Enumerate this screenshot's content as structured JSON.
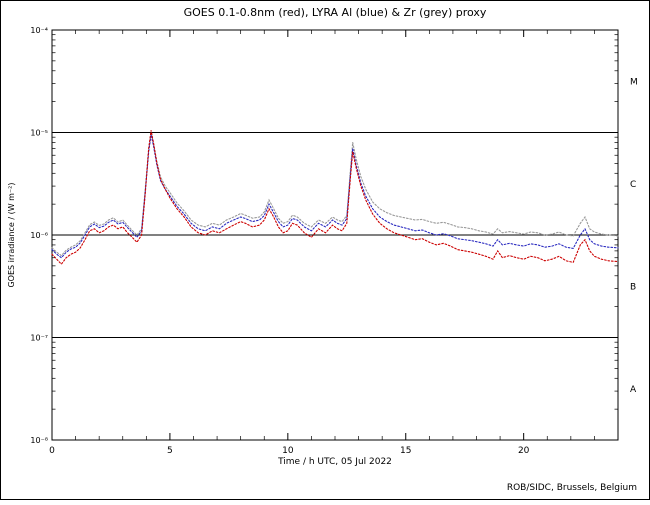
{
  "chart_data": {
    "type": "line",
    "title": "GOES 0.1-0.8nm (red), LYRA Al (blue) & Zr (grey) proxy",
    "xlabel": "Time / h UTC, 05 Jul 2022",
    "ylabel": "GOES irradiance / (W m⁻²)",
    "credit": "ROB/SIDC, Brussels, Belgium",
    "xlim": [
      0,
      24
    ],
    "ylim_exp": [
      -8,
      -4
    ],
    "grid": false,
    "legend_position": "in-title",
    "x_tick_labels": [
      {
        "value": 0,
        "label": "0"
      },
      {
        "value": 5,
        "label": "5"
      },
      {
        "value": 10,
        "label": "10"
      },
      {
        "value": 15,
        "label": "15"
      },
      {
        "value": 20,
        "label": "20"
      }
    ],
    "y_ticks": [
      {
        "exp": -4,
        "label": "10⁻⁴"
      },
      {
        "exp": -5,
        "label": "10⁻⁵"
      },
      {
        "exp": -6,
        "label": "10⁻⁶"
      },
      {
        "exp": -7,
        "label": "10⁻⁷"
      },
      {
        "exp": -8,
        "label": "10⁻⁸"
      }
    ],
    "threshold_exponents": [
      -5,
      -6,
      -7
    ],
    "flare_classes": [
      {
        "label": "M",
        "mid_exp": -4.5
      },
      {
        "label": "C",
        "mid_exp": -5.5
      },
      {
        "label": "B",
        "mid_exp": -6.5
      },
      {
        "label": "A",
        "mid_exp": -7.5
      }
    ],
    "x": [
      0,
      0.2,
      0.4,
      0.6,
      0.8,
      1.0,
      1.2,
      1.4,
      1.6,
      1.8,
      2.0,
      2.2,
      2.4,
      2.6,
      2.8,
      3.0,
      3.2,
      3.4,
      3.6,
      3.8,
      3.95,
      4.1,
      4.2,
      4.3,
      4.45,
      4.6,
      4.8,
      5.0,
      5.3,
      5.6,
      5.9,
      6.2,
      6.5,
      6.8,
      7.1,
      7.4,
      7.7,
      8.0,
      8.2,
      8.5,
      8.8,
      9.0,
      9.2,
      9.4,
      9.6,
      9.8,
      10.0,
      10.2,
      10.4,
      10.7,
      11.0,
      11.3,
      11.6,
      11.9,
      12.1,
      12.3,
      12.5,
      12.65,
      12.75,
      12.9,
      13.1,
      13.3,
      13.6,
      13.9,
      14.2,
      14.5,
      14.8,
      15.1,
      15.4,
      15.7,
      16.0,
      16.3,
      16.6,
      16.9,
      17.2,
      17.5,
      17.8,
      18.1,
      18.4,
      18.7,
      18.9,
      19.1,
      19.4,
      19.7,
      20.0,
      20.3,
      20.6,
      20.9,
      21.2,
      21.5,
      21.8,
      22.1,
      22.4,
      22.6,
      22.8,
      23.0,
      23.3,
      23.6,
      24.0
    ],
    "series": [
      {
        "key": "lyra-zr",
        "name": "LYRA Zr proxy",
        "color": "#999999",
        "values": [
          7.5e-07,
          6.8e-07,
          6.3e-07,
          7.1e-07,
          7.6e-07,
          8e-07,
          8.8e-07,
          1.05e-06,
          1.26e-06,
          1.34e-06,
          1.24e-06,
          1.28e-06,
          1.4e-06,
          1.47e-06,
          1.34e-06,
          1.4e-06,
          1.24e-06,
          1.11e-06,
          1e-06,
          1.15e-06,
          2.8e-06,
          7e-06,
          1e-05,
          8e-06,
          5.2e-06,
          3.7e-06,
          3e-06,
          2.6e-06,
          2.05e-06,
          1.72e-06,
          1.4e-06,
          1.25e-06,
          1.2e-06,
          1.3e-06,
          1.25e-06,
          1.4e-06,
          1.5e-06,
          1.62e-06,
          1.56e-06,
          1.46e-06,
          1.5e-06,
          1.68e-06,
          2.2e-06,
          1.8e-06,
          1.46e-06,
          1.3e-06,
          1.35e-06,
          1.56e-06,
          1.5e-06,
          1.3e-06,
          1.2e-06,
          1.4e-06,
          1.3e-06,
          1.5e-06,
          1.4e-06,
          1.35e-06,
          1.55e-06,
          4.2e-06,
          8e-06,
          5.5e-06,
          3.7e-06,
          2.8e-06,
          2.1e-06,
          1.8e-06,
          1.65e-06,
          1.55e-06,
          1.5e-06,
          1.45e-06,
          1.4e-06,
          1.42e-06,
          1.35e-06,
          1.3e-06,
          1.33e-06,
          1.27e-06,
          1.2e-06,
          1.18e-06,
          1.15e-06,
          1.1e-06,
          1.07e-06,
          1.02e-06,
          1.15e-06,
          1.05e-06,
          1.08e-06,
          1.05e-06,
          1.02e-06,
          1.07e-06,
          1.05e-06,
          1e-06,
          1.02e-06,
          1.07e-06,
          1e-06,
          9.8e-07,
          1.3e-06,
          1.5e-06,
          1.15e-06,
          1.07e-06,
          1.02e-06,
          1e-06,
          9.8e-07
        ]
      },
      {
        "key": "lyra-al",
        "name": "LYRA Al proxy",
        "color": "#2b2bc0",
        "values": [
          7.2e-07,
          6.5e-07,
          6e-07,
          6.8e-07,
          7.3e-07,
          7.6e-07,
          8.4e-07,
          1e-06,
          1.2e-06,
          1.28e-06,
          1.18e-06,
          1.22e-06,
          1.33e-06,
          1.4e-06,
          1.28e-06,
          1.33e-06,
          1.18e-06,
          1.06e-06,
          9.5e-07,
          1.1e-06,
          2.6e-06,
          6.5e-06,
          9.5e-06,
          7.5e-06,
          4.8e-06,
          3.4e-06,
          2.8e-06,
          2.4e-06,
          1.9e-06,
          1.6e-06,
          1.3e-06,
          1.15e-06,
          1.1e-06,
          1.2e-06,
          1.15e-06,
          1.3e-06,
          1.4e-06,
          1.5e-06,
          1.45e-06,
          1.35e-06,
          1.4e-06,
          1.55e-06,
          2e-06,
          1.65e-06,
          1.35e-06,
          1.2e-06,
          1.25e-06,
          1.45e-06,
          1.4e-06,
          1.2e-06,
          1.1e-06,
          1.3e-06,
          1.2e-06,
          1.4e-06,
          1.3e-06,
          1.25e-06,
          1.45e-06,
          3.8e-06,
          7e-06,
          4.8e-06,
          3.2e-06,
          2.4e-06,
          1.8e-06,
          1.5e-06,
          1.35e-06,
          1.25e-06,
          1.2e-06,
          1.15e-06,
          1.1e-06,
          1.12e-06,
          1.05e-06,
          1e-06,
          1.03e-06,
          9.8e-07,
          9.2e-07,
          9e-07,
          8.8e-07,
          8.5e-07,
          8.2e-07,
          7.8e-07,
          9e-07,
          8e-07,
          8.3e-07,
          8e-07,
          7.8e-07,
          8.2e-07,
          8e-07,
          7.6e-07,
          7.8e-07,
          8.2e-07,
          7.6e-07,
          7.4e-07,
          1e-06,
          1.15e-06,
          9e-07,
          8.2e-07,
          7.8e-07,
          7.6e-07,
          7.5e-07
        ]
      },
      {
        "key": "goes",
        "name": "GOES 0.1-0.8nm",
        "color": "#cc0000",
        "values": [
          6.5e-07,
          5.8e-07,
          5.2e-07,
          6e-07,
          6.5e-07,
          6.8e-07,
          7.5e-07,
          9e-07,
          1.1e-06,
          1.15e-06,
          1.05e-06,
          1.1e-06,
          1.2e-06,
          1.25e-06,
          1.15e-06,
          1.2e-06,
          1.05e-06,
          9.5e-07,
          8.5e-07,
          1e-06,
          2.5e-06,
          7e-06,
          1.05e-05,
          8e-06,
          5e-06,
          3.5e-06,
          2.8e-06,
          2.3e-06,
          1.8e-06,
          1.5e-06,
          1.2e-06,
          1.05e-06,
          1e-06,
          1.1e-06,
          1.05e-06,
          1.15e-06,
          1.25e-06,
          1.35e-06,
          1.3e-06,
          1.2e-06,
          1.25e-06,
          1.4e-06,
          1.8e-06,
          1.5e-06,
          1.2e-06,
          1.05e-06,
          1.1e-06,
          1.3e-06,
          1.25e-06,
          1.05e-06,
          9.5e-07,
          1.15e-06,
          1.05e-06,
          1.25e-06,
          1.15e-06,
          1.1e-06,
          1.3e-06,
          3.5e-06,
          6.5e-06,
          4.5e-06,
          3e-06,
          2.2e-06,
          1.6e-06,
          1.3e-06,
          1.15e-06,
          1.05e-06,
          1e-06,
          9.5e-07,
          9e-07,
          9.2e-07,
          8.5e-07,
          8e-07,
          8.3e-07,
          7.8e-07,
          7.2e-07,
          7e-07,
          6.8e-07,
          6.5e-07,
          6.2e-07,
          5.8e-07,
          7e-07,
          6e-07,
          6.3e-07,
          6e-07,
          5.8e-07,
          6.2e-07,
          6e-07,
          5.6e-07,
          5.8e-07,
          6.2e-07,
          5.6e-07,
          5.4e-07,
          8e-07,
          9e-07,
          7e-07,
          6.2e-07,
          5.8e-07,
          5.6e-07,
          5.5e-07
        ]
      }
    ]
  }
}
